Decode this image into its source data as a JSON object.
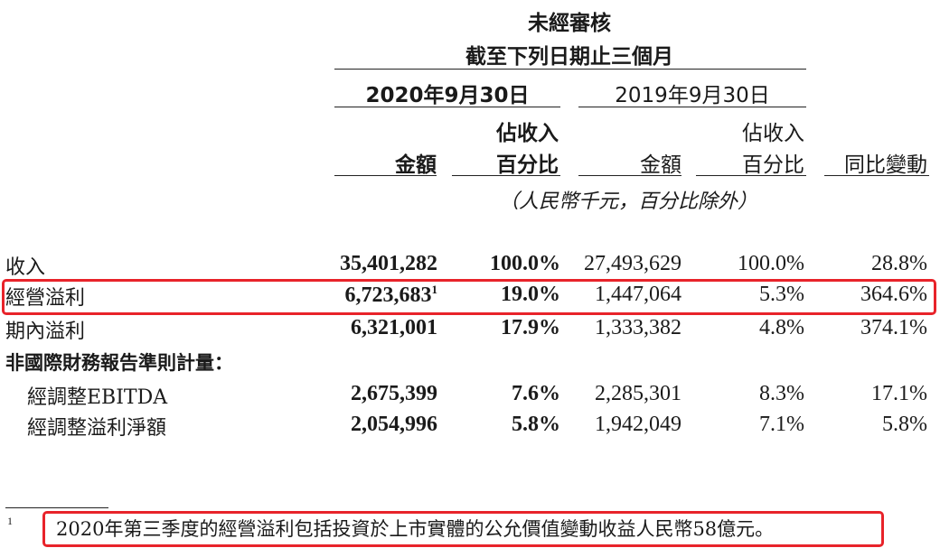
{
  "header": {
    "line1": "未經審核",
    "line2": "截至下列日期止三個月",
    "period_2020": "2020年9月30日",
    "period_2019": "2019年9月30日",
    "col_amount": "金額",
    "col_pct_line1": "佔收入",
    "col_pct_line2": "百分比",
    "col_change": "同比變動",
    "unit_note": "（人民幣千元，百分比除外）"
  },
  "rows": [
    {
      "label": "收入",
      "amt2020": "35,401,282",
      "sup": "",
      "pct2020": "100.0%",
      "amt2019": "27,493,629",
      "pct2019": "100.0%",
      "change": "28.8%"
    },
    {
      "label": "經營溢利",
      "amt2020": "6,723,683",
      "sup": "1",
      "pct2020": "19.0%",
      "amt2019": "1,447,064",
      "pct2019": "5.3%",
      "change": "364.6%"
    },
    {
      "label": "期內溢利",
      "amt2020": "6,321,001",
      "sup": "",
      "pct2020": "17.9%",
      "amt2019": "1,333,382",
      "pct2019": "4.8%",
      "change": "374.1%"
    }
  ],
  "section_label": "非國際財務報告準則計量：",
  "sub_rows": [
    {
      "label": "經調整EBITDA",
      "amt2020": "2,675,399",
      "pct2020": "7.6%",
      "amt2019": "2,285,301",
      "pct2019": "8.3%",
      "change": "17.1%"
    },
    {
      "label": "經調整溢利淨額",
      "amt2020": "2,054,996",
      "pct2020": "5.8%",
      "amt2019": "1,942,049",
      "pct2019": "7.1%",
      "change": "5.8%"
    }
  ],
  "footnote": {
    "marker": "1",
    "text": "2020年第三季度的經營溢利包括投資於上市實體的公允價值變動收益人民幣58億元。"
  },
  "highlight_color": "#e8232a"
}
